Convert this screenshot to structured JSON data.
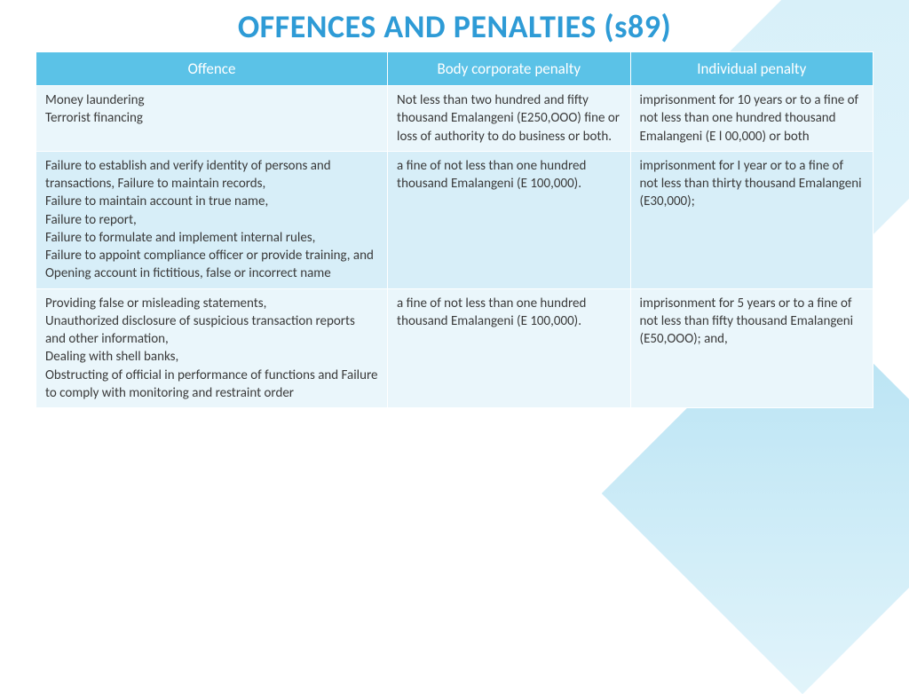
{
  "title": "OFFENCES AND PENALTIES (s89)",
  "colors": {
    "title_color": "#2e9bd6",
    "header_bg": "#5bc2e7",
    "header_text": "#ffffff",
    "row_odd_bg": "#eaf6fb",
    "row_even_bg": "#d7eef8",
    "text_color": "#3a3a3a",
    "background": "#ffffff"
  },
  "table": {
    "columns": [
      {
        "label": "Offence",
        "width_pct": 42
      },
      {
        "label": "Body corporate penalty",
        "width_pct": 29
      },
      {
        "label": "Individual penalty",
        "width_pct": 29
      }
    ],
    "rows": [
      {
        "offence": "Money laundering\nTerrorist financing",
        "body_penalty": "Not less than two hundred and fifty thousand Emalangeni (E250,OOO) fine or loss of authority to do business or both.",
        "individual_penalty": "imprisonment for 10 years or to a fine of not less than one hundred thousand Emalangeni (E l 00,000) or both"
      },
      {
        "offence": "Failure to establish and verify identity of persons and transactions, Failure to maintain records,\nFailure to maintain account in true name,\nFailure to report,\nFailure to formulate and implement internal rules,\nFailure to appoint compliance officer or provide training, and\nOpening account in fictitious, false or incorrect name",
        "body_penalty": " a fine of not less than one hundred thousand Emalangeni (E 100,000).",
        "individual_penalty": "imprisonment for I year or to a fine of not less than thirty thousand Emalangeni (E30,000);"
      },
      {
        "offence": "Providing false or misleading statements,\nUnauthorized disclosure of suspicious transaction reports and other information,\nDealing with shell banks,\nObstructing of official in performance of functions and Failure to comply with monitoring and restraint order",
        "body_penalty": "a fine of not less than one hundred thousand Emalangeni (E 100,000).",
        "individual_penalty": "imprisonment for 5 years or to a fine of not less than fifty thousand Emalangeni (E50,OOO); and,"
      }
    ]
  }
}
